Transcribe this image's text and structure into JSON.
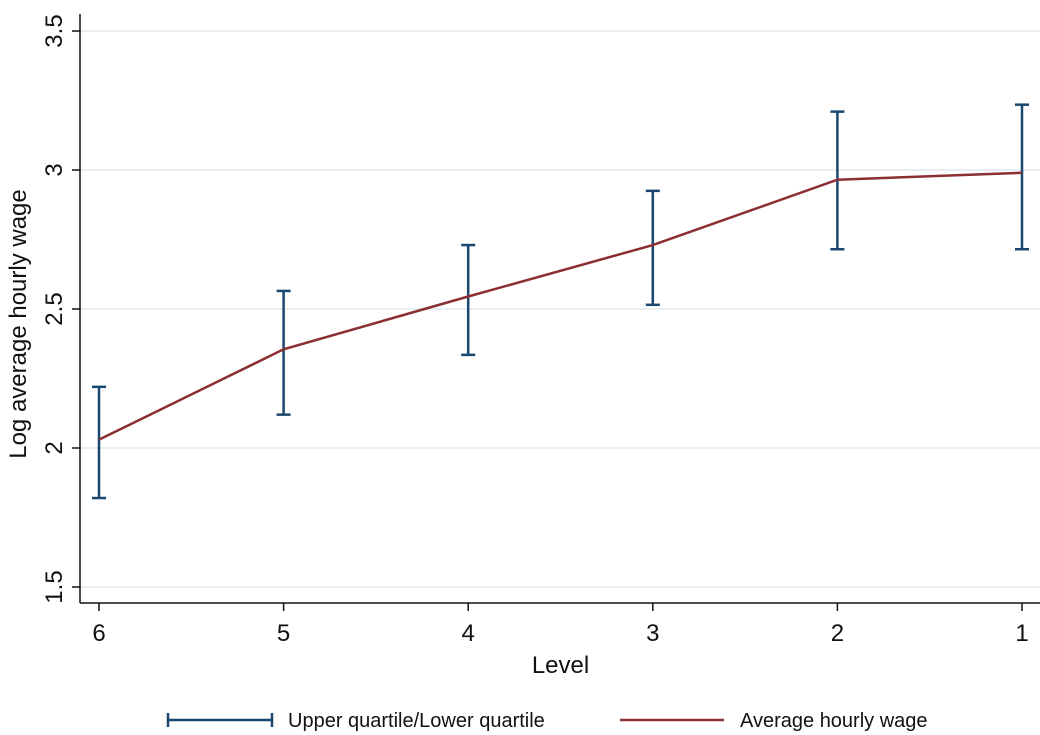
{
  "chart_data": {
    "type": "line",
    "title": "",
    "xlabel": "Level",
    "ylabel": "Log average hourly wage",
    "ylim": [
      1.5,
      3.5
    ],
    "yticks": [
      "1.5",
      "2",
      "2.5",
      "3",
      "3.5"
    ],
    "categories": [
      "6",
      "5",
      "4",
      "3",
      "2",
      "1"
    ],
    "grid": true,
    "legend_position": "bottom",
    "series": [
      {
        "name": "Average hourly wage",
        "kind": "line",
        "color": "#8b2e32",
        "values": [
          2.03,
          2.355,
          2.545,
          2.73,
          2.965,
          2.99
        ]
      },
      {
        "name": "Upper quartile/Lower quartile",
        "kind": "errorbar",
        "color": "#1a476f",
        "lower": [
          1.82,
          2.12,
          2.335,
          2.515,
          2.715,
          2.715
        ],
        "upper": [
          2.22,
          2.565,
          2.73,
          2.925,
          3.21,
          3.235
        ]
      }
    ]
  }
}
